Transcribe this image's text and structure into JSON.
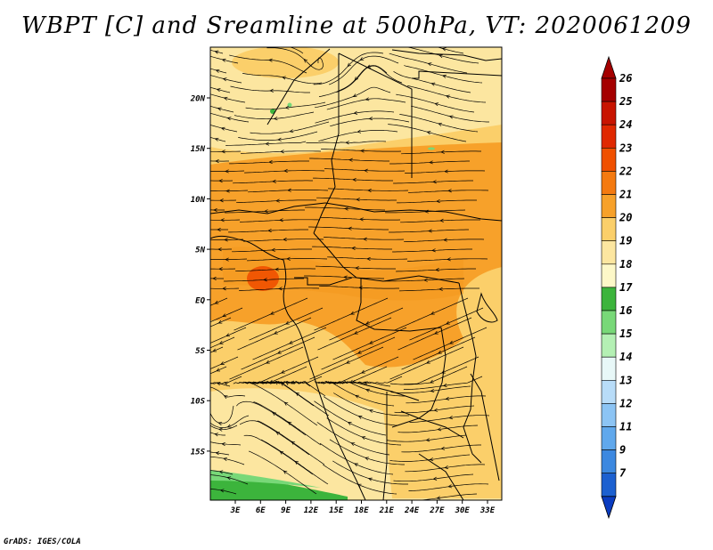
{
  "title": "WBPT [C] and Sreamline at 500hPa, VT: 2020061209",
  "credit": "GrADS: IGES/COLA",
  "map": {
    "lat_ticks": [
      "20N",
      "15N",
      "10N",
      "5N",
      "EQ",
      "5S",
      "10S",
      "15S"
    ],
    "lon_ticks": [
      "3E",
      "6E",
      "9E",
      "12E",
      "15E",
      "18E",
      "21E",
      "24E",
      "27E",
      "30E",
      "33E"
    ]
  },
  "colorbar": {
    "levels": [
      {
        "label": "26",
        "color": "#a50000"
      },
      {
        "label": "25",
        "color": "#c81400"
      },
      {
        "label": "24",
        "color": "#e02800"
      },
      {
        "label": "23",
        "color": "#f05000"
      },
      {
        "label": "22",
        "color": "#f47a10"
      },
      {
        "label": "21",
        "color": "#f7a12a"
      },
      {
        "label": "20",
        "color": "#fbcf6a"
      },
      {
        "label": "19",
        "color": "#fce6a0"
      },
      {
        "label": "18",
        "color": "#fdf8c8"
      },
      {
        "label": "17",
        "color": "#3cb43c"
      },
      {
        "label": "16",
        "color": "#78d878"
      },
      {
        "label": "15",
        "color": "#b4f0b4"
      },
      {
        "label": "14",
        "color": "#e8f8f8"
      },
      {
        "label": "13",
        "color": "#b8dcf8"
      },
      {
        "label": "12",
        "color": "#8cc4f4"
      },
      {
        "label": "11",
        "color": "#60a8ec"
      },
      {
        "label": "9",
        "color": "#3c88e0"
      },
      {
        "label": "7",
        "color": "#1c60d0"
      }
    ],
    "bottom_color": "#0a3cc0"
  }
}
